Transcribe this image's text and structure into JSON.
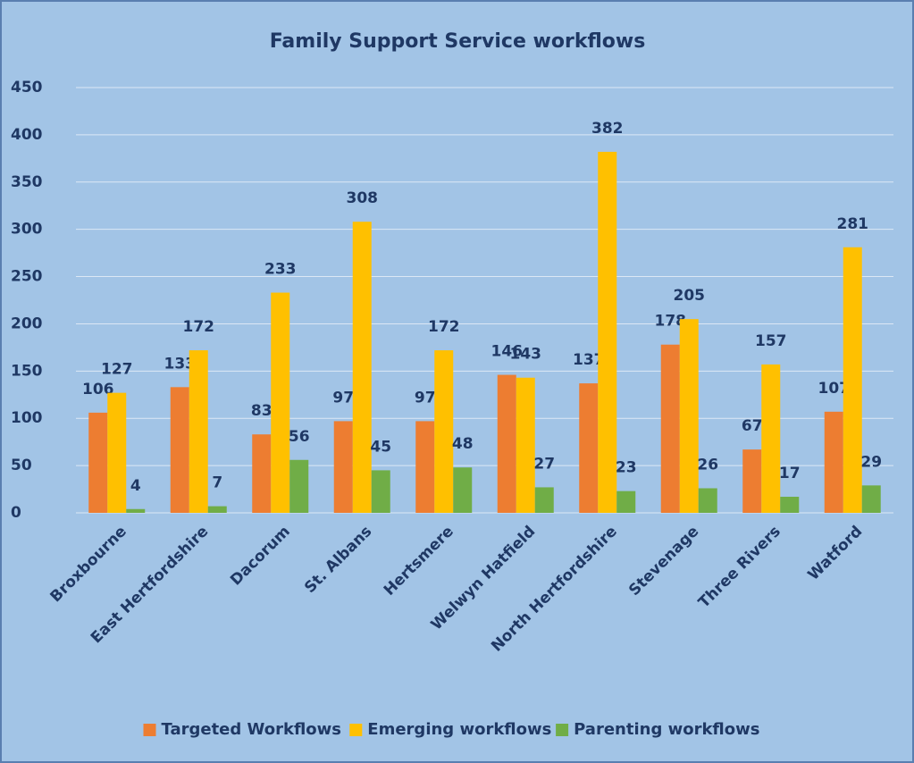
{
  "chart_data": {
    "type": "bar",
    "title": "Family Support Service workflows",
    "categories": [
      "Broxbourne",
      "East Hertfordshire",
      "Dacorum",
      "St. Albans",
      "Hertsmere",
      "Welwyn Hatfield",
      "North Hertfordshire",
      "Stevenage",
      "Three Rivers",
      "Watford"
    ],
    "series": [
      {
        "name": "Targeted Workflows",
        "color": "#ed7d31",
        "values": [
          106,
          133,
          83,
          97,
          97,
          146,
          137,
          178,
          67,
          107
        ]
      },
      {
        "name": "Emerging workflows",
        "color": "#ffc000",
        "values": [
          127,
          172,
          233,
          308,
          172,
          143,
          382,
          205,
          157,
          281
        ]
      },
      {
        "name": "Parenting workflows",
        "color": "#70ad47",
        "values": [
          4,
          7,
          56,
          45,
          48,
          27,
          23,
          26,
          17,
          29
        ]
      }
    ],
    "ylim": [
      0,
      450
    ],
    "yticks": [
      0,
      50,
      100,
      150,
      200,
      250,
      300,
      350,
      400,
      450
    ],
    "grid": true,
    "legend": "bottom"
  }
}
